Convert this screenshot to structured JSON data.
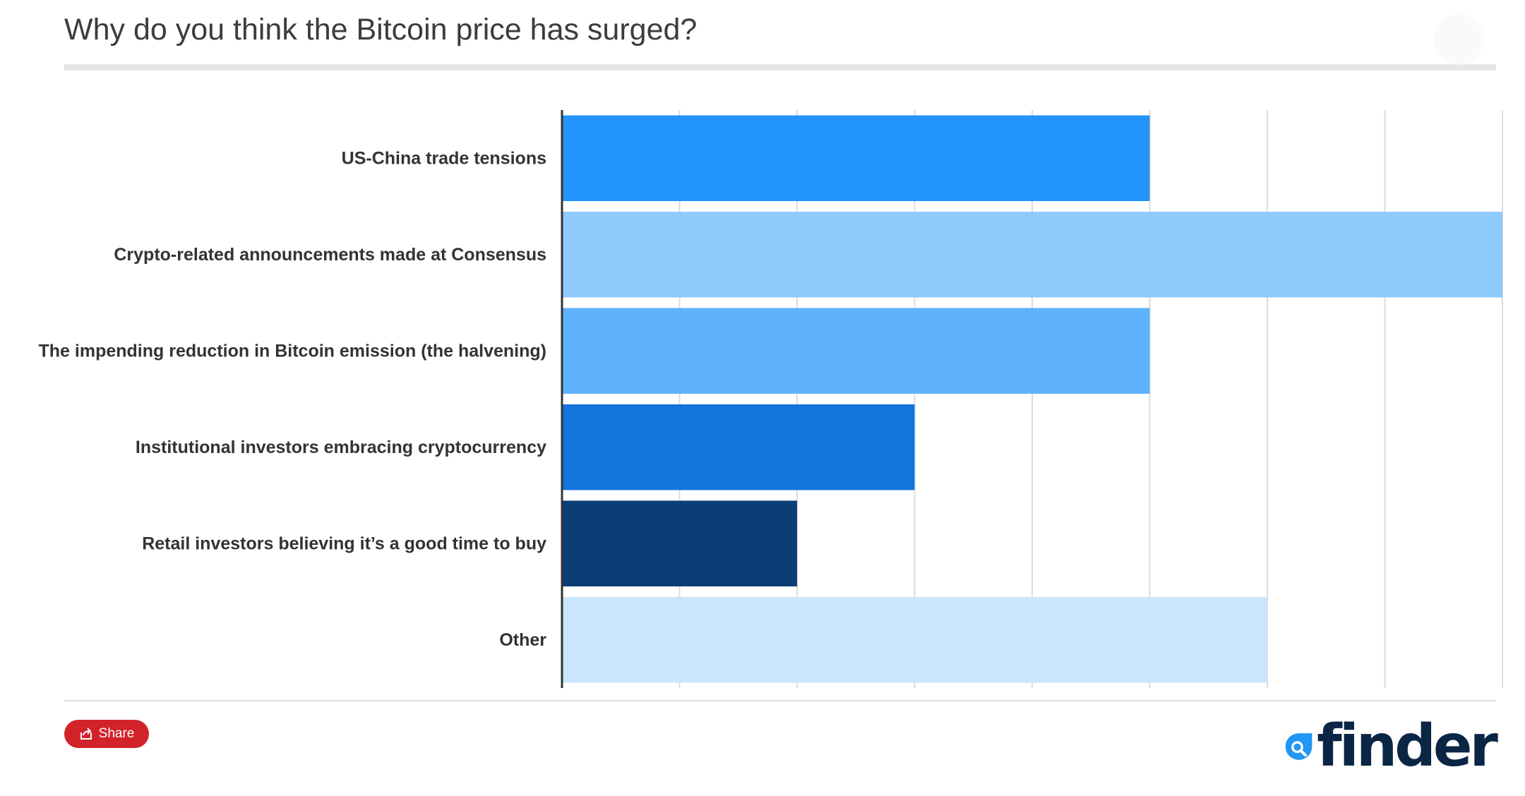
{
  "title": "Why do you think the Bitcoin price has surged?",
  "share": {
    "label": "Share"
  },
  "brand": {
    "name": "finder"
  },
  "colors": {
    "title": "#3c3c3c",
    "grid": "#dcdcdc",
    "axis": "#333333",
    "share_button": "#d2232a",
    "logo_mark": "#2196f3",
    "logo_text": "#0b2545"
  },
  "chart_data": {
    "type": "bar",
    "orientation": "horizontal",
    "categories": [
      "US-China trade tensions",
      "Crypto-related announcements made at Consensus",
      "The impending reduction in Bitcoin emission (the halvening)",
      "Institutional investors embracing cryptocurrency",
      "Retail investors believing it’s a good time to buy",
      "Other"
    ],
    "values": [
      5,
      8,
      5,
      3,
      2,
      6
    ],
    "bar_colors": [
      "#2394fb",
      "#8fcafd",
      "#5fb2fc",
      "#1374de",
      "#0c3d74",
      "#cbe5fd"
    ],
    "xlim": [
      0,
      8
    ],
    "grid": true,
    "legend": "none",
    "value_axis_labels": "hidden"
  }
}
